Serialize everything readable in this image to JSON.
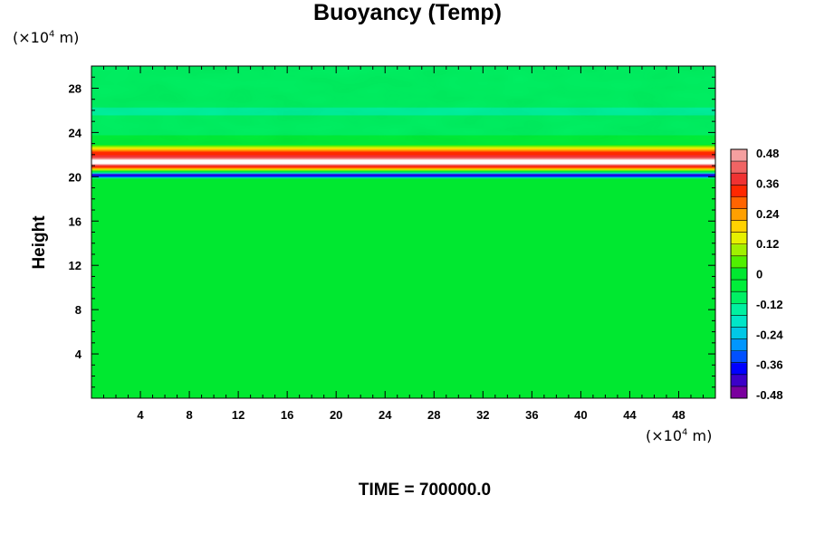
{
  "chart_data": {
    "type": "heatmap",
    "title": "Buoyancy (Temp)",
    "ylabel": "Height",
    "xunit_prefix": "(×10",
    "xunit_exp": "4",
    "xunit_suffix": " m)",
    "yunit_prefix": "(×10",
    "yunit_exp": "4",
    "yunit_suffix": " m)",
    "xlim": [
      0,
      51
    ],
    "ylim": [
      0,
      30
    ],
    "xticks": [
      4,
      8,
      12,
      16,
      20,
      24,
      28,
      32,
      36,
      40,
      44,
      48
    ],
    "yticks": [
      4,
      8,
      12,
      16,
      20,
      24,
      28
    ],
    "colorbar": {
      "ticks": [
        "0.48",
        "0.36",
        "0.24",
        "0.12",
        "0",
        "-0.12",
        "-0.24",
        "-0.36",
        "-0.48"
      ],
      "range": [
        -0.48,
        0.48
      ],
      "colors": [
        "#7a009e",
        "#3c00c8",
        "#0000ff",
        "#0050ff",
        "#0096ff",
        "#00c8e6",
        "#00e6c8",
        "#00f0a0",
        "#00f064",
        "#00ee3a",
        "#00e830",
        "#50f000",
        "#a0f000",
        "#e6f000",
        "#ffd200",
        "#ffa000",
        "#ff6400",
        "#ff2800",
        "#f03232",
        "#f06464",
        "#f5a0a0"
      ]
    },
    "profile": [
      {
        "height": 0,
        "value": 0.0
      },
      {
        "height": 19.8,
        "value": 0.0
      },
      {
        "height": 20.0,
        "value": -0.3
      },
      {
        "height": 20.2,
        "value": -0.4
      },
      {
        "height": 20.4,
        "value": -0.1
      },
      {
        "height": 20.7,
        "value": 0.2
      },
      {
        "height": 21.0,
        "value": 0.38
      },
      {
        "height": 21.3,
        "value": 0.6
      },
      {
        "height": 21.8,
        "value": 0.38
      },
      {
        "height": 22.2,
        "value": 0.3
      },
      {
        "height": 22.6,
        "value": 0.15
      },
      {
        "height": 23.0,
        "value": -0.04
      },
      {
        "height": 24.5,
        "value": -0.1
      },
      {
        "height": 26.0,
        "value": -0.12
      },
      {
        "height": 28.0,
        "value": -0.08
      },
      {
        "height": 30.0,
        "value": -0.07
      }
    ]
  },
  "footer": {
    "time_label": "TIME = 700000.0"
  }
}
